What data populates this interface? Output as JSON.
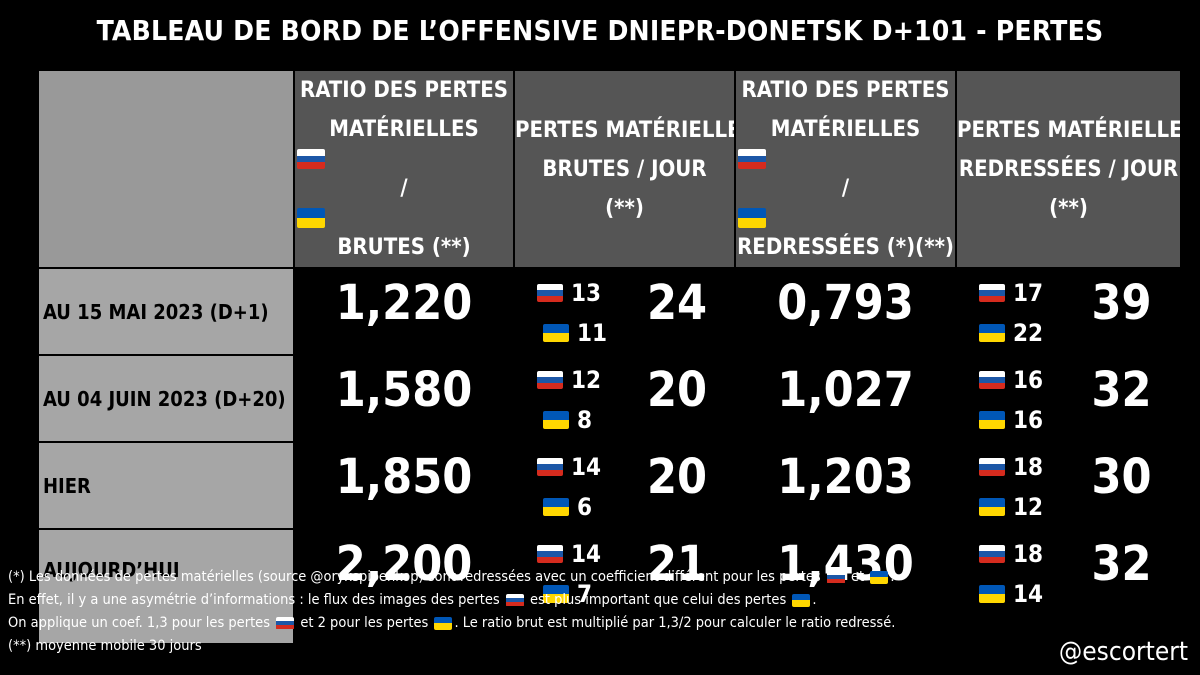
{
  "title": "TABLEAU DE BORD DE L’OFFENSIVE DNIEPR-DONETSK D+101 - PERTES",
  "headers": {
    "col1": [
      "RATIO DES PERTES",
      "MATÉRIELLES",
      "/",
      "BRUTES (**)"
    ],
    "col2": [
      "PERTES MATÉRIELLES",
      "BRUTES / JOUR",
      "(**)"
    ],
    "col3": [
      "RATIO DES PERTES",
      "MATÉRIELLES",
      "/",
      "REDRESSÉES (*)(**)"
    ],
    "col4": [
      "PERTES MATÉRIELLES",
      "REDRESSÉES / JOUR",
      "(**)"
    ]
  },
  "rows": [
    {
      "label": "AU 15 MAI 2023 (D+1)",
      "ratio_brut": "1,220",
      "brut_ru": "13",
      "brut_ua": "11",
      "brut_total": "24",
      "ratio_red": "0,793",
      "red_ru": "17",
      "red_ua": "22",
      "red_total": "39"
    },
    {
      "label": "AU 04 JUIN 2023 (D+20)",
      "ratio_brut": "1,580",
      "brut_ru": "12",
      "brut_ua": "8",
      "brut_total": "20",
      "ratio_red": "1,027",
      "red_ru": "16",
      "red_ua": "16",
      "red_total": "32"
    },
    {
      "label": "HIER",
      "ratio_brut": "1,850",
      "brut_ru": "14",
      "brut_ua": "6",
      "brut_total": "20",
      "ratio_red": "1,203",
      "red_ru": "18",
      "red_ua": "12",
      "red_total": "30"
    },
    {
      "label": "AUJOURD’HUI",
      "ratio_brut": "2,200",
      "brut_ru": "14",
      "brut_ua": "7",
      "brut_total": "21",
      "ratio_red": "1,430",
      "red_ru": "18",
      "red_ua": "14",
      "red_total": "32"
    }
  ],
  "notes": {
    "n1a": "(*) Les données de pertes matérielles (source @oryxspioenkop) sont redressées avec un coefficient différent pour les pertes",
    "n1b": "et",
    "n1c": ".",
    "n2a": "En effet, il y a une asymétrie d’informations : le flux des images des pertes",
    "n2b": "est plus important que celui des pertes",
    "n2c": ".",
    "n3a": "On applique un coef. 1,3 pour les pertes",
    "n3b": "et 2 pour les pertes",
    "n3c": ". Le ratio brut est multiplié par 1,3/2 pour calculer le ratio redressé.",
    "n4": "(**) moyenne mobile 30 jours"
  },
  "handle": "@escortert",
  "colors": {
    "header_bg": "#555555",
    "label_bg": "#a6a6a6",
    "ru_flag": [
      "#ffffff",
      "#1c57a7",
      "#d52b1e"
    ],
    "ua_flag": [
      "#0057b7",
      "#ffd700"
    ]
  }
}
